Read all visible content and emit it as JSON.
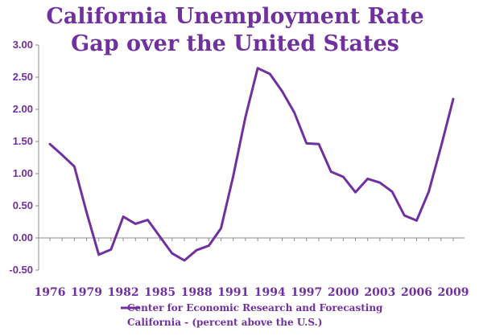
{
  "colors": {
    "accent": "#7030a0",
    "axis": "#8c8c8c"
  },
  "chart_data": {
    "type": "line",
    "title": [
      "California Unemployment Rate",
      "Gap over the United States"
    ],
    "xlabel": "",
    "ylabel": "",
    "ylim": [
      -0.5,
      3.0
    ],
    "y_ticks": [
      "-0.50",
      "0.00",
      "0.50",
      "1.00",
      "1.50",
      "2.00",
      "2.50",
      "3.00"
    ],
    "x_ticks": [
      "1976",
      "1979",
      "1982",
      "1985",
      "1988",
      "1991",
      "1994",
      "1997",
      "2000",
      "2003",
      "2006",
      "2009"
    ],
    "grid": false,
    "legend_position": "bottom",
    "series": [
      {
        "name": "Center for Economic Research and Forecasting California - (percent above the U.S.)",
        "x": [
          1976,
          1977,
          1978,
          1979,
          1980,
          1981,
          1982,
          1983,
          1984,
          1985,
          1986,
          1987,
          1988,
          1989,
          1990,
          1991,
          1992,
          1993,
          1994,
          1995,
          1996,
          1997,
          1998,
          1999,
          2000,
          2001,
          2002,
          2003,
          2004,
          2005,
          2006,
          2007,
          2008,
          2009
        ],
        "values": [
          1.46,
          1.29,
          1.11,
          0.4,
          -0.26,
          -0.18,
          0.33,
          0.22,
          0.28,
          0.02,
          -0.24,
          -0.35,
          -0.19,
          -0.12,
          0.15,
          0.96,
          1.88,
          2.64,
          2.55,
          2.28,
          1.95,
          1.47,
          1.46,
          1.03,
          0.95,
          0.71,
          0.92,
          0.86,
          0.72,
          0.35,
          0.27,
          0.72,
          1.42,
          2.16
        ]
      }
    ],
    "legend_lines": [
      "Center for Economic Research and Forecasting",
      "California - (percent above the U.S.)"
    ]
  }
}
